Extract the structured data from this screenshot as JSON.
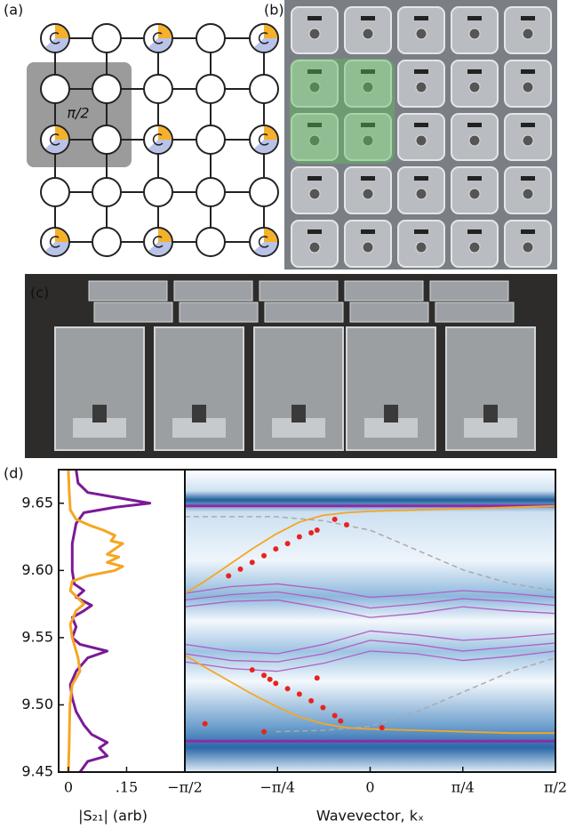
{
  "figure_labels": {
    "a": "(a)",
    "b": "(b)",
    "c": "(c)",
    "d": "(d)",
    "cell_phase": "π/2"
  },
  "chart_data": [
    {
      "type": "line",
      "xlabel": "|S₂₁| (arb)",
      "xlim": [
        -0.025,
        0.3
      ],
      "ylim": [
        9.45,
        9.675
      ],
      "xticks": [
        0,
        {
          "value": 0.15,
          "label": ".15"
        }
      ],
      "yticks": [
        9.45,
        {
          "value": 9.5,
          "label": "9.50"
        },
        9.55,
        {
          "value": 9.6,
          "label": "9.60"
        },
        9.65
      ],
      "series": [
        {
          "color": "#7b1a96",
          "x": [
            0.02,
            0.025,
            0.05,
            0.15,
            0.21,
            0.12,
            0.04,
            0.02,
            0.01,
            0.01,
            0.015,
            0.04,
            0.02,
            0.06,
            0.04,
            0.01,
            0.02,
            0.01,
            0.03,
            0.1,
            0.05,
            0.02,
            0.005,
            0.01,
            0.02,
            0.04,
            0.06,
            0.1,
            0.08,
            0.1,
            0.05,
            0.03
          ],
          "values": [
            9.675,
            9.665,
            9.658,
            9.653,
            9.65,
            9.647,
            9.643,
            9.635,
            9.62,
            9.6,
            9.59,
            9.585,
            9.58,
            9.574,
            9.57,
            9.565,
            9.558,
            9.55,
            9.545,
            9.54,
            9.535,
            9.525,
            9.515,
            9.505,
            9.495,
            9.485,
            9.478,
            9.472,
            9.468,
            9.462,
            9.458,
            9.45
          ]
        },
        {
          "color": "#f5a623",
          "x": [
            0,
            0.002,
            0.005,
            0.02,
            0.06,
            0.09,
            0.12,
            0.11,
            0.14,
            0.12,
            0.1,
            0.13,
            0.1,
            0.14,
            0.12,
            0.05,
            0.01,
            0.005,
            0.04,
            0.02,
            0.005,
            0.01,
            0.02,
            0.025,
            0.03,
            0.01,
            0.004,
            0.002,
            0
          ],
          "values": [
            9.675,
            9.66,
            9.645,
            9.638,
            9.633,
            9.63,
            9.626,
            9.622,
            9.62,
            9.616,
            9.612,
            9.61,
            9.606,
            9.603,
            9.6,
            9.596,
            9.592,
            9.585,
            9.575,
            9.57,
            9.56,
            9.55,
            9.54,
            9.535,
            9.525,
            9.515,
            9.5,
            9.47,
            9.45
          ]
        }
      ]
    },
    {
      "type": "band",
      "xlabel": "Wavevector, kₓ",
      "xlim": [
        -1.5708,
        1.5708
      ],
      "ylim": [
        9.45,
        9.675
      ],
      "xticks": [
        {
          "value": -1.5708,
          "label": "−π/2"
        },
        {
          "value": -0.7854,
          "label": "−π/4"
        },
        0,
        {
          "value": 0.7854,
          "label": "π/4"
        },
        {
          "value": 1.5708,
          "label": "π/2"
        }
      ],
      "series": [
        {
          "style": "line",
          "color": "#8e2aa8",
          "width": 3,
          "x": [
            -1.5708,
            1.5708
          ],
          "values": [
            9.648,
            9.648
          ]
        },
        {
          "style": "line",
          "color": "#8e2aa8",
          "width": 3,
          "x": [
            -1.5708,
            1.5708
          ],
          "values": [
            9.473,
            9.473
          ]
        },
        {
          "style": "line",
          "color": "#b05fc4",
          "width": 1.3,
          "x": [
            -1.571,
            -1.178,
            -0.785,
            -0.393,
            0,
            0.393,
            0.785,
            1.178,
            1.571
          ],
          "values": [
            9.583,
            9.588,
            9.59,
            9.586,
            9.58,
            9.582,
            9.585,
            9.583,
            9.58
          ]
        },
        {
          "style": "line",
          "color": "#b05fc4",
          "width": 1.3,
          "x": [
            -1.571,
            -1.178,
            -0.785,
            -0.393,
            0,
            0.393,
            0.785,
            1.178,
            1.571
          ],
          "values": [
            9.578,
            9.582,
            9.584,
            9.579,
            9.572,
            9.575,
            9.579,
            9.577,
            9.574
          ]
        },
        {
          "style": "line",
          "color": "#b05fc4",
          "width": 1.3,
          "x": [
            -1.571,
            -1.178,
            -0.785,
            -0.393,
            0,
            0.393,
            0.785,
            1.178,
            1.571
          ],
          "values": [
            9.573,
            9.577,
            9.578,
            9.572,
            9.565,
            9.568,
            9.573,
            9.57,
            9.568
          ]
        },
        {
          "style": "line",
          "color": "#b05fc4",
          "width": 1.3,
          "x": [
            -1.571,
            -1.178,
            -0.785,
            -0.393,
            0,
            0.393,
            0.785,
            1.178,
            1.571
          ],
          "values": [
            9.545,
            9.54,
            9.538,
            9.545,
            9.555,
            9.552,
            9.548,
            9.55,
            9.553
          ]
        },
        {
          "style": "line",
          "color": "#b05fc4",
          "width": 1.3,
          "x": [
            -1.571,
            -1.178,
            -0.785,
            -0.393,
            0,
            0.393,
            0.785,
            1.178,
            1.571
          ],
          "values": [
            9.538,
            9.533,
            9.532,
            9.538,
            9.548,
            9.545,
            9.54,
            9.543,
            9.546
          ]
        },
        {
          "style": "line",
          "color": "#b05fc4",
          "width": 1.3,
          "x": [
            -1.571,
            -1.178,
            -0.785,
            -0.393,
            0,
            0.393,
            0.785,
            1.178,
            1.571
          ],
          "values": [
            9.532,
            9.527,
            9.525,
            9.531,
            9.54,
            9.538,
            9.533,
            9.536,
            9.54
          ]
        },
        {
          "style": "dashed",
          "color": "#aaaaaa",
          "width": 1.5,
          "x": [
            -1.571,
            -0.8,
            -0.4,
            0,
            0.4,
            0.8,
            1.2,
            1.571
          ],
          "values": [
            9.64,
            9.64,
            9.637,
            9.63,
            9.615,
            9.6,
            9.59,
            9.585
          ]
        },
        {
          "style": "dashed",
          "color": "#aaaaaa",
          "width": 1.5,
          "x": [
            -0.8,
            -0.4,
            0,
            0.4,
            0.8,
            1.2,
            1.571
          ],
          "values": [
            9.48,
            9.481,
            9.484,
            9.495,
            9.51,
            9.525,
            9.535
          ]
        },
        {
          "style": "line",
          "color": "#f5a623",
          "width": 1.8,
          "x": [
            -1.571,
            -1.4,
            -1.2,
            -1.0,
            -0.8,
            -0.6,
            -0.4,
            -0.2,
            0,
            0.4,
            0.8,
            1.2,
            1.571
          ],
          "values": [
            9.583,
            9.592,
            9.604,
            9.616,
            9.627,
            9.636,
            9.641,
            9.643,
            9.644,
            9.645,
            9.646,
            9.647,
            9.648
          ]
        },
        {
          "style": "line",
          "color": "#f5a623",
          "width": 1.8,
          "x": [
            -1.571,
            -1.4,
            -1.2,
            -1.0,
            -0.8,
            -0.6,
            -0.4,
            -0.2,
            0,
            0.4,
            0.8,
            1.2,
            1.571
          ],
          "values": [
            9.537,
            9.528,
            9.518,
            9.508,
            9.499,
            9.491,
            9.486,
            9.483,
            9.482,
            9.481,
            9.48,
            9.479,
            9.479
          ]
        },
        {
          "style": "dots",
          "color": "#e8231f",
          "width": 3,
          "x": [
            -1.2,
            -1.1,
            -1.0,
            -0.9,
            -0.8,
            -0.7,
            -0.6,
            -0.5,
            -0.45,
            -0.3,
            -0.2
          ],
          "values": [
            9.596,
            9.601,
            9.606,
            9.611,
            9.616,
            9.62,
            9.625,
            9.628,
            9.63,
            9.638,
            9.634
          ]
        },
        {
          "style": "dots",
          "color": "#e8231f",
          "width": 3,
          "x": [
            -1.4,
            -1.0,
            -0.9,
            -0.85,
            -0.8,
            -0.7,
            -0.6,
            -0.5,
            -0.4,
            -0.3,
            -0.25,
            -0.9,
            -0.45,
            0.1
          ],
          "values": [
            9.486,
            9.526,
            9.522,
            9.519,
            9.516,
            9.512,
            9.508,
            9.503,
            9.498,
            9.492,
            9.488,
            9.48,
            9.52,
            9.483
          ]
        }
      ]
    }
  ]
}
